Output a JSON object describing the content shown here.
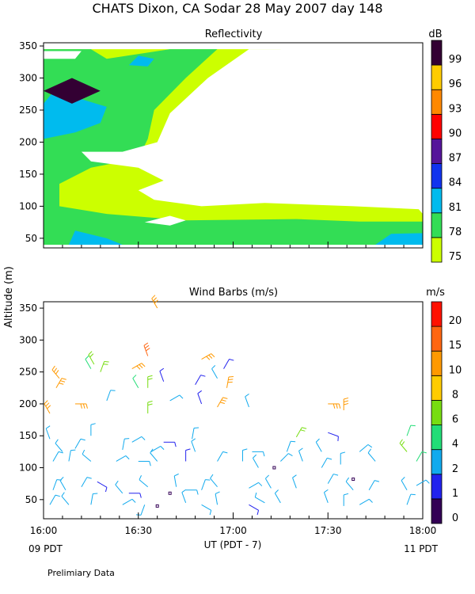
{
  "title": "CHATS Dixon, CA  Sodar  28 May 2007  day 148",
  "ylabel": "Altitude (m)",
  "xlabel": "UT  (PDT - 7)",
  "left_note": "09 PDT",
  "right_note": "11 PDT",
  "footer": "Prelimiary Data",
  "colors": {
    "reflectivity": [
      "#ccff00",
      "#33dd55",
      "#00bbee",
      "#1133ee",
      "#55159a",
      "#ff0000",
      "#ff8800",
      "#ffcc00",
      "#330033"
    ],
    "wind": [
      "#330055",
      "#2222ee",
      "#11aaee",
      "#22dd77",
      "#77dd11",
      "#ffcc00",
      "#ff9900",
      "#ff6611",
      "#ff1100"
    ]
  },
  "chart_data": [
    {
      "type": "heatmap",
      "title": "Reflectivity",
      "x_ticks": [
        "16:00",
        "16:30",
        "17:00",
        "17:30",
        "18:00"
      ],
      "xlim": [
        "16:00",
        "18:00"
      ],
      "ylim": [
        35,
        355
      ],
      "y_ticks": [
        50,
        100,
        150,
        200,
        250,
        300,
        350
      ],
      "colorbar": {
        "unit": "dB",
        "levels": [
          "75",
          "78",
          "81",
          "84",
          "87",
          "90",
          "93",
          "96",
          "99"
        ]
      },
      "regions": [
        {
          "name": "yellow",
          "level": "75",
          "polygon": [
            [
              "16:00",
              40
            ],
            [
              "16:00",
              345
            ],
            [
              "17:15",
              345
            ],
            [
              "18:00",
              88
            ],
            [
              "18:00",
              40
            ]
          ]
        },
        {
          "name": "green",
          "level": "78",
          "polygon": [
            [
              "16:00",
              40
            ],
            [
              "16:00",
              345
            ],
            [
              "16:15",
              345
            ],
            [
              "16:20",
              330
            ],
            [
              "16:40",
              345
            ],
            [
              "16:55",
              345
            ],
            [
              "16:45",
              300
            ],
            [
              "16:35",
              250
            ],
            [
              "16:33",
              205
            ],
            [
              "16:30",
              175
            ],
            [
              "16:15",
              160
            ],
            [
              "16:05",
              135
            ],
            [
              "16:05",
              100
            ],
            [
              "16:20",
              88
            ],
            [
              "16:45",
              78
            ],
            [
              "17:20",
              80
            ],
            [
              "17:40",
              76
            ],
            [
              "18:00",
              76
            ],
            [
              "18:00",
              40
            ]
          ]
        },
        {
          "name": "blue-lower",
          "level": "81",
          "polygon": [
            [
              "16:00",
              40
            ],
            [
              "16:08",
              40
            ],
            [
              "16:10",
              62
            ],
            [
              "16:20",
              50
            ],
            [
              "16:25",
              40
            ]
          ]
        },
        {
          "name": "blue-right",
          "level": "81",
          "polygon": [
            [
              "17:45",
              40
            ],
            [
              "17:50",
              57
            ],
            [
              "18:00",
              58
            ],
            [
              "18:00",
              40
            ]
          ]
        },
        {
          "name": "blue-upper",
          "level": "81",
          "polygon": [
            [
              "16:00",
              205
            ],
            [
              "16:00",
              260
            ],
            [
              "16:05",
              290
            ],
            [
              "16:10",
              270
            ],
            [
              "16:20",
              255
            ],
            [
              "16:18",
              230
            ],
            [
              "16:10",
              215
            ]
          ]
        },
        {
          "name": "blue-top",
          "level": "81",
          "polygon": [
            [
              "16:27",
              320
            ],
            [
              "16:30",
              335
            ],
            [
              "16:35",
              330
            ],
            [
              "16:33",
              318
            ]
          ]
        },
        {
          "name": "peak",
          "level": "99",
          "polygon": [
            [
              "16:00",
              280
            ],
            [
              "16:09",
              300
            ],
            [
              "16:18",
              280
            ],
            [
              "16:09",
              260
            ]
          ]
        }
      ],
      "white_regions": [
        {
          "name": "top-left",
          "polygon": [
            [
              "16:00",
              330
            ],
            [
              "16:00",
              342
            ],
            [
              "16:12",
              342
            ],
            [
              "16:10",
              330
            ]
          ]
        },
        {
          "name": "main",
          "polygon": [
            [
              "16:12",
              185
            ],
            [
              "16:25",
              185
            ],
            [
              "16:36",
              200
            ],
            [
              "16:40",
              245
            ],
            [
              "16:52",
              300
            ],
            [
              "17:05",
              345
            ],
            [
              "18:00",
              345
            ],
            [
              "18:00",
              95
            ],
            [
              "17:38",
              100
            ],
            [
              "17:10",
              105
            ],
            [
              "16:50",
              100
            ],
            [
              "16:35",
              110
            ],
            [
              "16:30",
              125
            ],
            [
              "16:38",
              140
            ],
            [
              "16:30",
              160
            ],
            [
              "16:15",
              170
            ]
          ]
        },
        {
          "name": "bottom",
          "polygon": [
            [
              "16:32",
              75
            ],
            [
              "16:40",
              85
            ],
            [
              "16:45",
              78
            ],
            [
              "16:40",
              70
            ]
          ]
        }
      ]
    },
    {
      "type": "scatter",
      "title": "Wind Barbs (m/s)",
      "x_ticks": [
        "16:00",
        "16:30",
        "17:00",
        "17:30",
        "18:00"
      ],
      "xlim": [
        "16:00",
        "18:00"
      ],
      "ylim": [
        20,
        360
      ],
      "y_ticks": [
        50,
        100,
        150,
        200,
        250,
        300,
        350
      ],
      "colorbar": {
        "unit": "m/s",
        "levels": [
          "0",
          "1",
          "2",
          "4",
          "6",
          "8",
          "10",
          "15",
          "20"
        ]
      },
      "barbs": [
        {
          "time": "16:02",
          "alt": 42,
          "dir": 30,
          "speed": 3
        },
        {
          "time": "16:08",
          "alt": 42,
          "dir": -40,
          "speed": 3
        },
        {
          "time": "16:15",
          "alt": 42,
          "dir": 10,
          "speed": 3
        },
        {
          "time": "16:25",
          "alt": 42,
          "dir": 60,
          "speed": 2
        },
        {
          "time": "16:32",
          "alt": 42,
          "dir": 200,
          "speed": 3
        },
        {
          "time": "16:36",
          "alt": 40,
          "dir": 0,
          "speed": 0
        },
        {
          "time": "16:45",
          "alt": 45,
          "dir": -20,
          "speed": 3
        },
        {
          "time": "16:50",
          "alt": 42,
          "dir": 120,
          "speed": 3
        },
        {
          "time": "16:55",
          "alt": 42,
          "dir": -10,
          "speed": 3
        },
        {
          "time": "17:05",
          "alt": 42,
          "dir": 120,
          "speed": 1
        },
        {
          "time": "17:10",
          "alt": 45,
          "dir": -60,
          "speed": 3
        },
        {
          "time": "17:15",
          "alt": 45,
          "dir": -30,
          "speed": 3
        },
        {
          "time": "17:30",
          "alt": 45,
          "dir": -20,
          "speed": 3
        },
        {
          "time": "17:35",
          "alt": 40,
          "dir": 0,
          "speed": 3
        },
        {
          "time": "17:40",
          "alt": 42,
          "dir": 60,
          "speed": 2
        },
        {
          "time": "17:55",
          "alt": 42,
          "dir": 20,
          "speed": 2
        },
        {
          "time": "16:03",
          "alt": 65,
          "dir": 20,
          "speed": 3
        },
        {
          "time": "16:07",
          "alt": 65,
          "dir": -30,
          "speed": 3
        },
        {
          "time": "16:12",
          "alt": 70,
          "dir": 30,
          "speed": 3
        },
        {
          "time": "16:17",
          "alt": 78,
          "dir": 120,
          "speed": 1
        },
        {
          "time": "16:25",
          "alt": 60,
          "dir": -40,
          "speed": 3
        },
        {
          "time": "16:27",
          "alt": 60,
          "dir": 90,
          "speed": 1
        },
        {
          "time": "16:33",
          "alt": 70,
          "dir": -50,
          "speed": 3
        },
        {
          "time": "16:40",
          "alt": 60,
          "dir": 0,
          "speed": 0
        },
        {
          "time": "16:42",
          "alt": 70,
          "dir": -10,
          "speed": 3
        },
        {
          "time": "16:45",
          "alt": 65,
          "dir": 90,
          "speed": 2
        },
        {
          "time": "16:50",
          "alt": 65,
          "dir": 20,
          "speed": 3
        },
        {
          "time": "16:55",
          "alt": 70,
          "dir": -40,
          "speed": 3
        },
        {
          "time": "17:05",
          "alt": 68,
          "dir": 60,
          "speed": 3
        },
        {
          "time": "17:12",
          "alt": 68,
          "dir": -30,
          "speed": 3
        },
        {
          "time": "17:20",
          "alt": 68,
          "dir": -20,
          "speed": 3
        },
        {
          "time": "17:30",
          "alt": 75,
          "dir": 30,
          "speed": 3
        },
        {
          "time": "17:38",
          "alt": 65,
          "dir": -40,
          "speed": 3
        },
        {
          "time": "17:43",
          "alt": 65,
          "dir": 30,
          "speed": 3
        },
        {
          "time": "17:55",
          "alt": 65,
          "dir": -30,
          "speed": 3
        },
        {
          "time": "17:58",
          "alt": 72,
          "dir": 60,
          "speed": 3
        },
        {
          "time": "16:03",
          "alt": 110,
          "dir": 30,
          "speed": 3
        },
        {
          "time": "16:08",
          "alt": 110,
          "dir": 10,
          "speed": 3
        },
        {
          "time": "16:15",
          "alt": 110,
          "dir": -50,
          "speed": 3
        },
        {
          "time": "16:23",
          "alt": 110,
          "dir": 60,
          "speed": 3
        },
        {
          "time": "16:30",
          "alt": 110,
          "dir": 90,
          "speed": 3
        },
        {
          "time": "16:36",
          "alt": 110,
          "dir": -40,
          "speed": 3
        },
        {
          "time": "16:45",
          "alt": 110,
          "dir": 0,
          "speed": 1
        },
        {
          "time": "16:55",
          "alt": 110,
          "dir": 30,
          "speed": 3
        },
        {
          "time": "17:03",
          "alt": 110,
          "dir": 0,
          "speed": 3
        },
        {
          "time": "17:08",
          "alt": 100,
          "dir": -30,
          "speed": 3
        },
        {
          "time": "17:13",
          "alt": 100,
          "dir": 0,
          "speed": 0
        },
        {
          "time": "17:15",
          "alt": 110,
          "dir": 45,
          "speed": 3
        },
        {
          "time": "17:22",
          "alt": 110,
          "dir": -20,
          "speed": 3
        },
        {
          "time": "17:28",
          "alt": 100,
          "dir": 30,
          "speed": 3
        },
        {
          "time": "17:34",
          "alt": 105,
          "dir": 0,
          "speed": 3
        },
        {
          "time": "17:38",
          "alt": 82,
          "dir": 0,
          "speed": 0
        },
        {
          "time": "17:45",
          "alt": 110,
          "dir": -40,
          "speed": 3
        },
        {
          "time": "17:58",
          "alt": 110,
          "dir": 30,
          "speed": 4
        },
        {
          "time": "16:06",
          "alt": 125,
          "dir": -40,
          "speed": 3
        },
        {
          "time": "16:10",
          "alt": 130,
          "dir": 30,
          "speed": 3
        },
        {
          "time": "16:25",
          "alt": 128,
          "dir": 10,
          "speed": 3
        },
        {
          "time": "16:34",
          "alt": 125,
          "dir": 60,
          "speed": 3
        },
        {
          "time": "16:48",
          "alt": 125,
          "dir": -20,
          "speed": 3
        },
        {
          "time": "17:06",
          "alt": 125,
          "dir": 90,
          "speed": 3
        },
        {
          "time": "17:17",
          "alt": 125,
          "dir": 20,
          "speed": 3
        },
        {
          "time": "17:28",
          "alt": 125,
          "dir": -30,
          "speed": 3
        },
        {
          "time": "17:40",
          "alt": 125,
          "dir": 50,
          "speed": 3
        },
        {
          "time": "17:55",
          "alt": 125,
          "dir": -40,
          "speed": 6
        },
        {
          "time": "16:02",
          "alt": 145,
          "dir": -20,
          "speed": 3
        },
        {
          "time": "16:15",
          "alt": 150,
          "dir": 0,
          "speed": 3
        },
        {
          "time": "16:28",
          "alt": 140,
          "dir": 60,
          "speed": 3
        },
        {
          "time": "16:38",
          "alt": 140,
          "dir": 90,
          "speed": 1
        },
        {
          "time": "16:47",
          "alt": 145,
          "dir": 10,
          "speed": 3
        },
        {
          "time": "17:20",
          "alt": 148,
          "dir": 30,
          "speed": 6
        },
        {
          "time": "17:30",
          "alt": 155,
          "dir": 110,
          "speed": 1
        },
        {
          "time": "17:55",
          "alt": 150,
          "dir": 20,
          "speed": 4
        },
        {
          "time": "16:02",
          "alt": 185,
          "dir": -30,
          "speed": 10
        },
        {
          "time": "16:10",
          "alt": 200,
          "dir": 90,
          "speed": 10
        },
        {
          "time": "16:20",
          "alt": 205,
          "dir": 20,
          "speed": 3
        },
        {
          "time": "16:33",
          "alt": 185,
          "dir": 0,
          "speed": 6
        },
        {
          "time": "16:40",
          "alt": 205,
          "dir": 60,
          "speed": 3
        },
        {
          "time": "16:50",
          "alt": 200,
          "dir": -20,
          "speed": 1
        },
        {
          "time": "16:55",
          "alt": 195,
          "dir": 30,
          "speed": 10
        },
        {
          "time": "17:05",
          "alt": 195,
          "dir": -20,
          "speed": 3
        },
        {
          "time": "17:30",
          "alt": 200,
          "dir": 90,
          "speed": 10
        },
        {
          "time": "17:35",
          "alt": 190,
          "dir": 0,
          "speed": 10
        },
        {
          "time": "16:04",
          "alt": 225,
          "dir": 30,
          "speed": 10
        },
        {
          "time": "16:05",
          "alt": 240,
          "dir": -40,
          "speed": 10
        },
        {
          "time": "16:15",
          "alt": 255,
          "dir": -30,
          "speed": 4
        },
        {
          "time": "16:18",
          "alt": 250,
          "dir": 20,
          "speed": 6
        },
        {
          "time": "16:28",
          "alt": 255,
          "dir": 60,
          "speed": 10
        },
        {
          "time": "16:30",
          "alt": 225,
          "dir": -30,
          "speed": 4
        },
        {
          "time": "16:33",
          "alt": 225,
          "dir": 0,
          "speed": 6
        },
        {
          "time": "16:38",
          "alt": 235,
          "dir": -20,
          "speed": 1
        },
        {
          "time": "16:48",
          "alt": 230,
          "dir": 30,
          "speed": 1
        },
        {
          "time": "16:55",
          "alt": 240,
          "dir": -30,
          "speed": 3
        },
        {
          "time": "16:57",
          "alt": 255,
          "dir": 30,
          "speed": 1
        },
        {
          "time": "16:58",
          "alt": 225,
          "dir": 10,
          "speed": 10
        },
        {
          "time": "16:16",
          "alt": 262,
          "dir": -30,
          "speed": 6
        },
        {
          "time": "16:33",
          "alt": 275,
          "dir": -20,
          "speed": 15
        },
        {
          "time": "16:50",
          "alt": 270,
          "dir": 60,
          "speed": 10
        },
        {
          "time": "16:36",
          "alt": 350,
          "dir": -30,
          "speed": 10
        }
      ]
    }
  ]
}
